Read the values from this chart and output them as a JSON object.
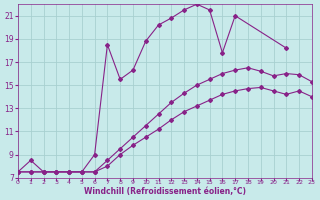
{
  "xlabel": "Windchill (Refroidissement éolien,°C)",
  "bg_color": "#c8eaea",
  "grid_color": "#a8d0d0",
  "line_color": "#882288",
  "xlim": [
    0,
    23
  ],
  "ylim": [
    7,
    22
  ],
  "xticks": [
    0,
    1,
    2,
    3,
    4,
    5,
    6,
    7,
    8,
    9,
    10,
    11,
    12,
    13,
    14,
    15,
    16,
    17,
    18,
    19,
    20,
    21,
    22,
    23
  ],
  "yticks": [
    7,
    9,
    11,
    13,
    15,
    17,
    19,
    21
  ],
  "series": [
    {
      "x": [
        0,
        1,
        2,
        3,
        4,
        5,
        6,
        7,
        8,
        9,
        10,
        11,
        12,
        13,
        14,
        15,
        16,
        17,
        21
      ],
      "y": [
        7.5,
        8.5,
        7.5,
        7.5,
        7.5,
        7.5,
        9.0,
        18.5,
        15.5,
        16.3,
        18.8,
        20.2,
        20.8,
        21.5,
        22.0,
        21.5,
        17.8,
        21.0,
        18.2
      ]
    },
    {
      "x": [
        0,
        1,
        2,
        3,
        4,
        5,
        6,
        7,
        8,
        9,
        10,
        11,
        12,
        13,
        14,
        15,
        16,
        17,
        18,
        19,
        20,
        21,
        22,
        23
      ],
      "y": [
        7.5,
        7.5,
        7.5,
        7.5,
        7.5,
        7.5,
        7.5,
        8.5,
        9.5,
        10.5,
        11.5,
        12.5,
        13.5,
        14.3,
        15.0,
        15.5,
        16.0,
        16.3,
        16.5,
        16.2,
        15.8,
        16.0,
        15.9,
        15.3
      ]
    },
    {
      "x": [
        0,
        1,
        2,
        3,
        4,
        5,
        6,
        7,
        8,
        9,
        10,
        11,
        12,
        13,
        14,
        15,
        16,
        17,
        18,
        19,
        20,
        21,
        22,
        23
      ],
      "y": [
        7.5,
        7.5,
        7.5,
        7.5,
        7.5,
        7.5,
        7.5,
        8.0,
        9.0,
        9.8,
        10.5,
        11.2,
        12.0,
        12.7,
        13.2,
        13.7,
        14.2,
        14.5,
        14.7,
        14.8,
        14.5,
        14.2,
        14.5,
        14.0
      ]
    }
  ]
}
